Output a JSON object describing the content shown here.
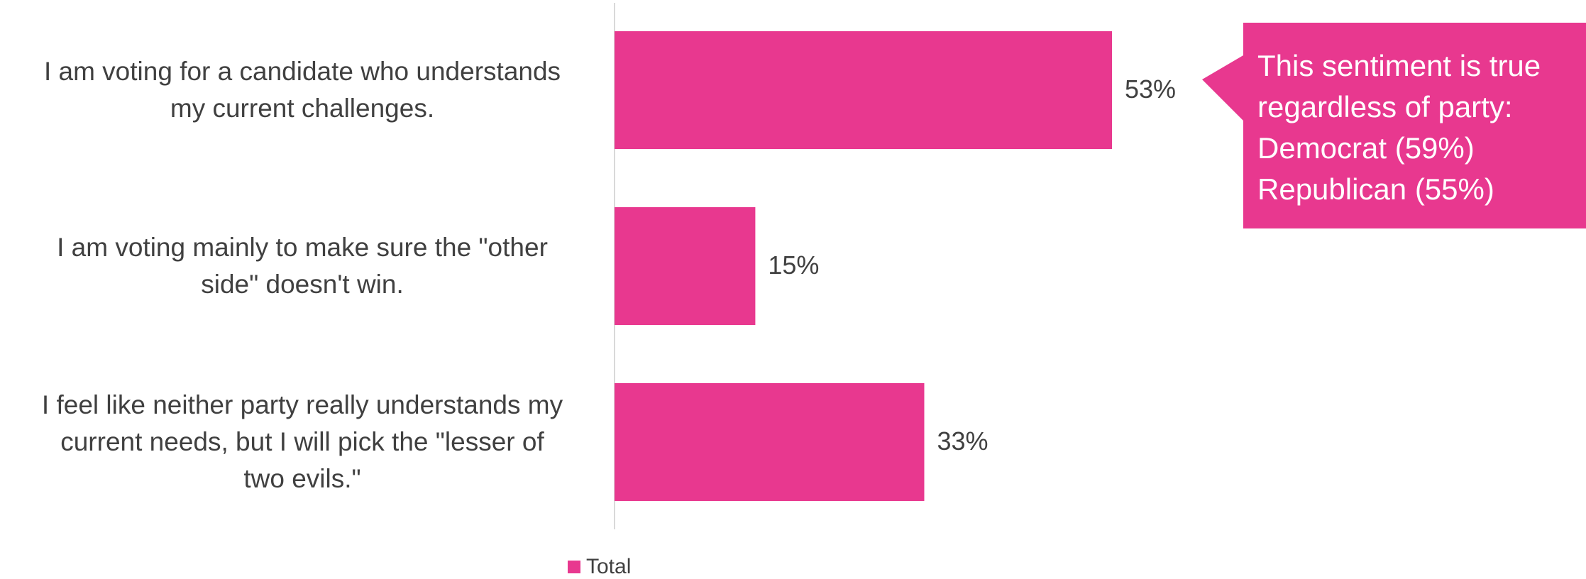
{
  "chart_data": {
    "type": "bar",
    "orientation": "horizontal",
    "categories": [
      "I am voting for a candidate who understands my current challenges.",
      "I am voting mainly to make sure the \"other side\" doesn't win.",
      "I feel like neither party really understands my current needs, but I will pick the \"lesser of two evils.\""
    ],
    "category_lines": [
      [
        "I am voting for a candidate who understands",
        "my current challenges."
      ],
      [
        "I am voting mainly to make sure the \"other",
        "side\" doesn't win."
      ],
      [
        "I feel like neither party really understands my",
        "current needs, but I will pick the \"lesser of",
        "two evils.\""
      ]
    ],
    "series": [
      {
        "name": "Total",
        "values": [
          53,
          15,
          33
        ],
        "value_labels": [
          "53%",
          "15%",
          "33%"
        ],
        "color": "#E8388F"
      }
    ],
    "xlim": [
      0,
      100
    ],
    "grid": false,
    "legend": "bottom",
    "annotation": {
      "lines": [
        "This sentiment is true",
        "regardless of party:",
        "Democrat (59%)",
        "Republican (55%)"
      ],
      "target_category": 0,
      "color": "#E8388F"
    }
  }
}
